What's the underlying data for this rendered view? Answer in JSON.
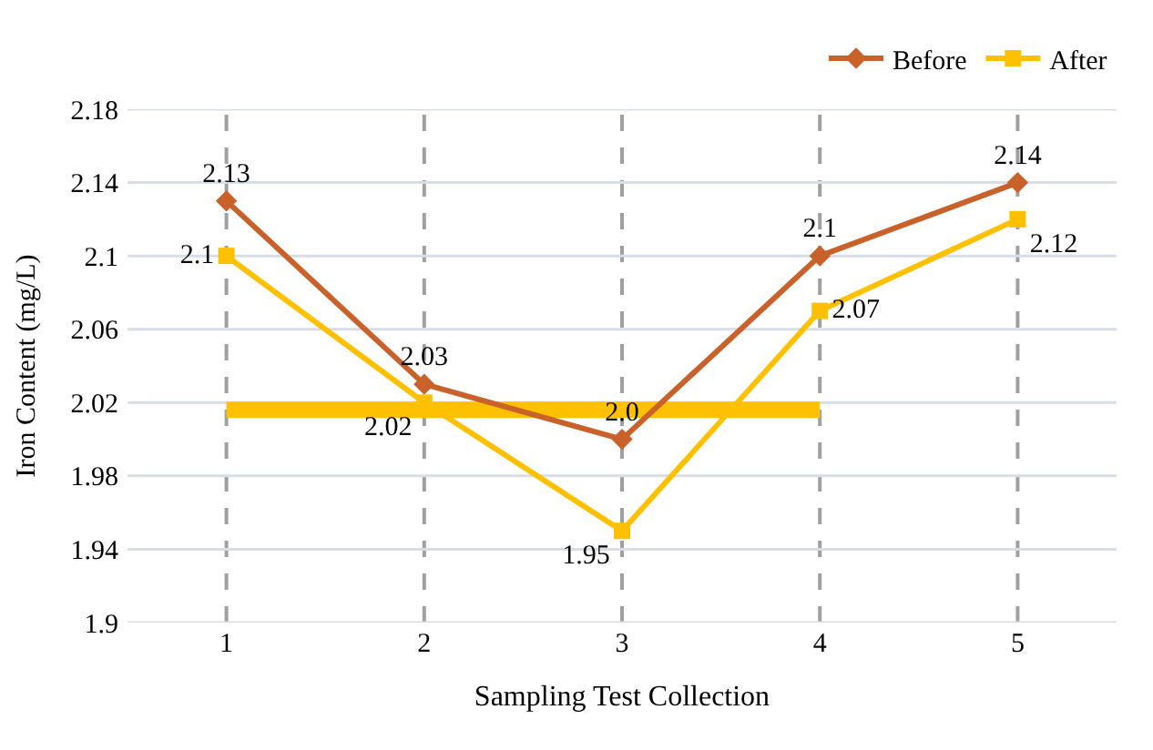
{
  "chart_data": {
    "type": "line",
    "xlabel": "Sampling Test Collection",
    "ylabel": "Iron Content (mg/L)",
    "categories": [
      "1",
      "2",
      "3",
      "4",
      "5"
    ],
    "series": [
      {
        "name": "Before",
        "color": "#c9622a",
        "values": [
          2.13,
          2.03,
          2.0,
          2.1,
          2.14
        ],
        "marker": "diamond",
        "value_labels": [
          "2.13",
          "2.03",
          "2.0",
          "2.1",
          "2.14"
        ]
      },
      {
        "name": "After",
        "color": "#ffc000",
        "values": [
          2.1,
          2.02,
          1.95,
          2.07,
          2.12
        ],
        "marker": "square",
        "value_labels": [
          "2.1",
          "2.02",
          "1.95",
          "2.07",
          "2.12"
        ]
      },
      {
        "color": "#ffc000",
        "values": [
          2.016,
          2.016,
          2.016,
          2.016,
          null
        ],
        "marker": "none"
      }
    ],
    "ylim": [
      1.9,
      2.18
    ],
    "yticks": [
      1.9,
      1.94,
      1.98,
      2.02,
      2.06,
      2.1,
      2.14,
      2.18
    ],
    "grid": "y",
    "ref_lines": [
      {
        "axis": "x",
        "value": "1",
        "color": "#a0a0a0",
        "line_style": "dashed"
      },
      {
        "axis": "x",
        "value": "2",
        "color": "#a0a0a0",
        "line_style": "dashed"
      },
      {
        "axis": "x",
        "value": "3",
        "color": "#a0a0a0",
        "line_style": "dashed"
      },
      {
        "axis": "x",
        "value": "4",
        "color": "#a0a0a0",
        "line_style": "dashed"
      },
      {
        "axis": "x",
        "value": "5",
        "color": "#a0a0a0",
        "line_style": "dashed"
      }
    ],
    "legend": "top right"
  }
}
